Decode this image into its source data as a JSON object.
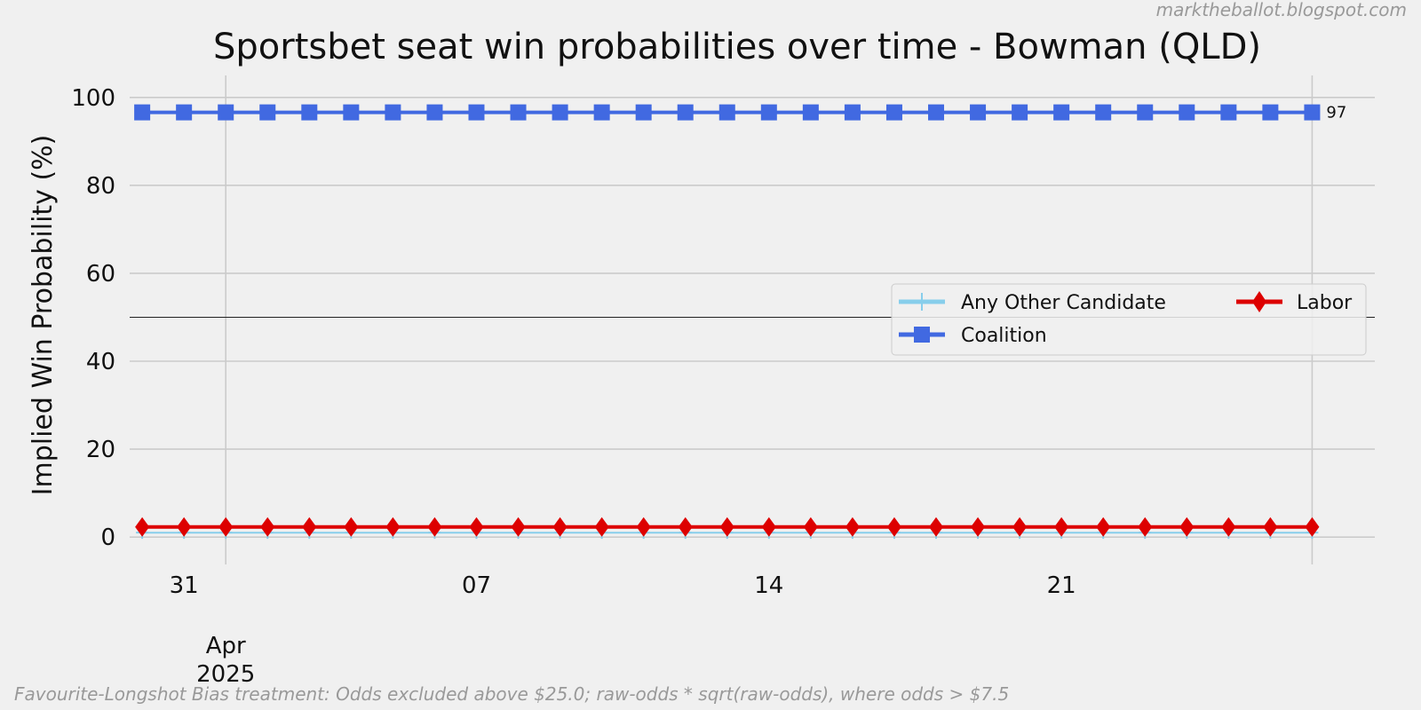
{
  "chart_data": {
    "type": "line",
    "title": "Sportsbet seat win probabilities over time - Bowman (QLD)",
    "watermark": "marktheballot.blogspot.com",
    "footnote": "Favourite-Longshot Bias treatment: Odds excluded above $25.0; raw-odds * sqrt(raw-odds), where odds > $7.5",
    "ylabel": "Implied Win Probability (%)",
    "xlabel": "",
    "x_start": "2025-03-30",
    "x_end": "2025-04-27",
    "xlim": [
      "2025-03-29.7",
      "2025-04-28.5"
    ],
    "ylim": [
      -3,
      105
    ],
    "yticks": [
      0,
      20,
      40,
      60,
      80,
      100
    ],
    "xticks": [
      {
        "date": "2025-03-31",
        "label": "31"
      },
      {
        "date": "2025-04-07",
        "label": "07"
      },
      {
        "date": "2025-04-14",
        "label": "14"
      },
      {
        "date": "2025-04-21",
        "label": "21"
      }
    ],
    "major_tick": {
      "date": "2025-04-01",
      "label_line1": "Apr",
      "label_line2": "2025"
    },
    "reference_line": 50,
    "grid": true,
    "legend_position": "center-right",
    "series": [
      {
        "name": "Any Other Candidate",
        "value": 1.0,
        "color": "#87ceeb",
        "marker": "plus"
      },
      {
        "name": "Coalition",
        "value": 96.6,
        "color": "#4169e1",
        "marker": "square",
        "end_label": "97"
      },
      {
        "name": "Labor",
        "value": 2.3,
        "color": "#dd0000",
        "marker": "diamond"
      }
    ]
  }
}
